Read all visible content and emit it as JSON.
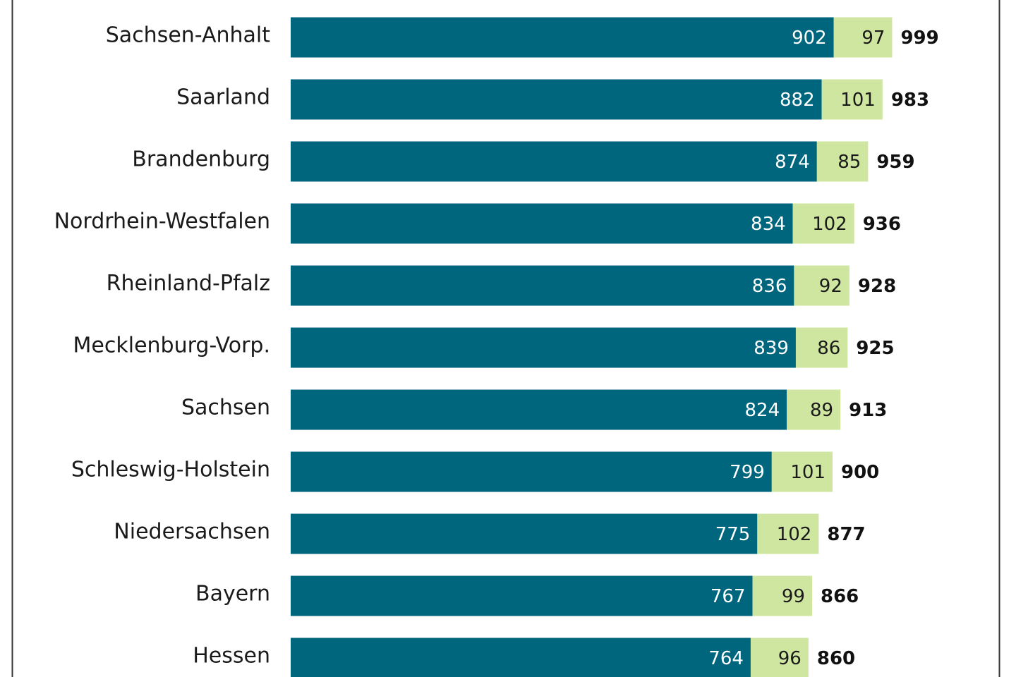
{
  "chart_data": {
    "type": "stacked-barh",
    "categories": [
      "Sachsen-Anhalt",
      "Saarland",
      "Brandenburg",
      "Nordrhein-Westfalen",
      "Rheinland-Pfalz",
      "Mecklenburg-Vorp.",
      "Sachsen",
      "Schleswig-Holstein",
      "Niedersachsen",
      "Bayern",
      "Hessen"
    ],
    "series": [
      {
        "color": "#00667e",
        "values": [
          902,
          882,
          874,
          834,
          836,
          839,
          824,
          799,
          775,
          767,
          764
        ]
      },
      {
        "color": "#cfe6a1",
        "values": [
          97,
          101,
          85,
          102,
          92,
          86,
          89,
          101,
          102,
          99,
          96
        ]
      }
    ],
    "totals": [
      999,
      983,
      959,
      936,
      928,
      925,
      913,
      900,
      877,
      866,
      860
    ],
    "xlim": [
      0,
      1200
    ]
  }
}
